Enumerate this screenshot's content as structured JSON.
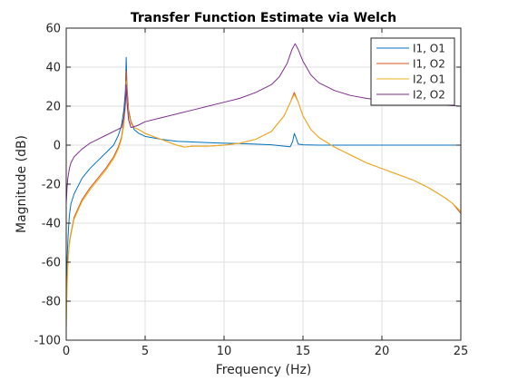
{
  "chart_data": {
    "type": "line",
    "title": "Transfer Function Estimate via Welch",
    "xlabel": "Frequency (Hz)",
    "ylabel": "Magnitude (dB)",
    "xlim": [
      0,
      25
    ],
    "ylim": [
      -100,
      60
    ],
    "xticks": [
      "0",
      "5",
      "10",
      "15",
      "20",
      "25"
    ],
    "yticks": [
      "-100",
      "-80",
      "-60",
      "-40",
      "-20",
      "0",
      "20",
      "40",
      "60"
    ],
    "grid": true,
    "legend_position": "top-right",
    "series": [
      {
        "name": "I1, O1",
        "color": "#0072BD",
        "x": [
          0.0,
          0.05,
          0.1,
          0.15,
          0.2,
          0.3,
          0.5,
          1.0,
          1.5,
          2.0,
          2.5,
          3.0,
          3.3,
          3.5,
          3.65,
          3.75,
          3.8,
          3.85,
          3.95,
          4.1,
          4.3,
          4.6,
          5.0,
          6.0,
          7.0,
          8.0,
          9.0,
          10.0,
          11.0,
          12.0,
          13.0,
          13.8,
          14.2,
          14.35,
          14.45,
          14.55,
          14.7,
          15.0,
          16.0,
          18.0,
          20.0,
          22.0,
          25.0
        ],
        "values": [
          -75,
          -60,
          -50,
          -42,
          -36,
          -30,
          -25,
          -17,
          -12,
          -8,
          -4,
          0,
          5,
          10,
          18,
          28,
          45,
          30,
          18,
          12,
          8,
          6,
          4.5,
          3,
          2,
          1.6,
          1.3,
          1,
          0.8,
          0.5,
          0.2,
          -0.5,
          -0.8,
          2,
          6,
          4,
          0.5,
          0.2,
          0,
          0,
          0,
          0,
          0
        ]
      },
      {
        "name": "I1, O2",
        "color": "#D95319",
        "x": [
          0.0,
          0.05,
          0.1,
          0.15,
          0.2,
          0.3,
          0.5,
          1.0,
          1.5,
          2.0,
          2.5,
          3.0,
          3.3,
          3.5,
          3.65,
          3.75,
          3.8,
          3.85,
          3.95,
          4.1,
          4.3,
          4.6,
          5.0,
          6.0,
          7.0,
          7.5,
          8.0,
          9.0,
          10.0,
          11.0,
          12.0,
          13.0,
          13.8,
          14.2,
          14.45,
          14.7,
          15.0,
          15.5,
          16.0,
          17.0,
          18.0,
          19.0,
          20.0,
          21.0,
          22.0,
          23.0,
          24.0,
          24.5,
          25.0
        ],
        "values": [
          -85,
          -70,
          -60,
          -55,
          -50,
          -45,
          -37,
          -28,
          -22,
          -17,
          -12,
          -6,
          -1,
          4,
          12,
          22,
          38,
          28,
          18,
          12,
          9,
          8,
          6,
          3,
          0,
          -1,
          -0.5,
          -0.5,
          0,
          1,
          3,
          7,
          15,
          22,
          27,
          22,
          15,
          8,
          4,
          -1,
          -5,
          -9,
          -12,
          -15,
          -18,
          -22,
          -27,
          -30,
          -35
        ]
      },
      {
        "name": "I2, O1",
        "color": "#EDB120",
        "x": [
          0.0,
          0.05,
          0.1,
          0.15,
          0.2,
          0.3,
          0.5,
          1.0,
          1.5,
          2.0,
          2.5,
          3.0,
          3.3,
          3.5,
          3.65,
          3.75,
          3.8,
          3.85,
          3.95,
          4.1,
          4.3,
          4.6,
          5.0,
          6.0,
          7.0,
          7.5,
          8.0,
          9.0,
          10.0,
          11.0,
          12.0,
          13.0,
          13.8,
          14.2,
          14.45,
          14.7,
          15.0,
          15.5,
          16.0,
          17.0,
          18.0,
          19.0,
          20.0,
          21.0,
          22.0,
          23.0,
          24.0,
          24.5,
          25.0
        ],
        "values": [
          -95,
          -75,
          -62,
          -56,
          -51,
          -46,
          -38,
          -29,
          -23,
          -18,
          -13,
          -7,
          -2,
          3,
          10,
          20,
          33,
          24,
          16,
          11,
          9,
          8,
          6,
          3,
          0,
          -1,
          -0.5,
          -0.5,
          0,
          1,
          3,
          7,
          15,
          22,
          26,
          22,
          15,
          8,
          4,
          -1,
          -5,
          -9,
          -12,
          -15,
          -18,
          -22,
          -27,
          -30,
          -34
        ]
      },
      {
        "name": "I2, O2",
        "color": "#7E2F8E",
        "x": [
          0.0,
          0.05,
          0.1,
          0.2,
          0.3,
          0.5,
          1.0,
          1.5,
          2.0,
          2.5,
          3.0,
          3.5,
          3.65,
          3.75,
          3.8,
          3.85,
          3.95,
          4.1,
          4.5,
          5.0,
          6.0,
          7.0,
          8.0,
          9.0,
          10.0,
          11.0,
          12.0,
          13.0,
          13.5,
          14.0,
          14.3,
          14.5,
          14.7,
          15.0,
          15.5,
          16.0,
          17.0,
          18.0,
          19.0,
          20.0,
          21.0,
          22.0,
          23.0,
          24.0,
          25.0
        ],
        "values": [
          -30,
          -22,
          -17,
          -12,
          -9,
          -6,
          -2,
          1,
          3,
          5,
          7,
          9,
          14,
          22,
          31,
          22,
          13,
          9,
          10,
          12,
          14,
          16,
          18,
          20,
          22,
          24,
          27,
          31,
          35,
          42,
          49,
          52,
          49,
          43,
          36,
          32,
          28,
          25.5,
          24,
          23,
          22,
          21.5,
          21,
          20.5,
          20
        ]
      }
    ]
  }
}
